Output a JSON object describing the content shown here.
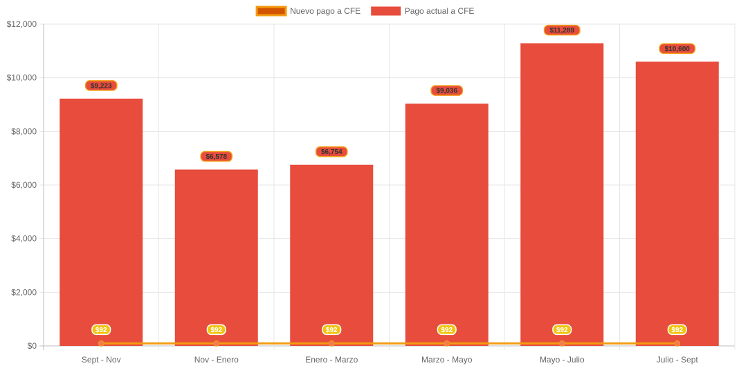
{
  "chart_data": {
    "type": "bar",
    "categories": [
      "Sept - Nov",
      "Nov - Enero",
      "Enero - Marzo",
      "Marzo - Mayo",
      "Mayo - Julio",
      "Julio - Sept"
    ],
    "series": [
      {
        "name": "Nuevo pago a CFE",
        "type": "line",
        "values": [
          92,
          92,
          92,
          92,
          92,
          92
        ],
        "labels": [
          "$92",
          "$92",
          "$92",
          "$92",
          "$92",
          "$92"
        ],
        "color": "#f39c12",
        "fill_color": "#d35400"
      },
      {
        "name": "Pago actual a CFE",
        "type": "bar",
        "values": [
          9223,
          6578,
          6754,
          9036,
          11289,
          10600
        ],
        "labels": [
          "$9,223",
          "$6,578",
          "$6,754",
          "$9,036",
          "$11,289",
          "$10,600"
        ],
        "color": "#e74c3c"
      }
    ],
    "yticks": [
      0,
      2000,
      4000,
      6000,
      8000,
      10000,
      12000
    ],
    "ytick_labels": [
      "$0",
      "$2,000",
      "$4,000",
      "$6,000",
      "$8,000",
      "$10,000",
      "$12,000"
    ],
    "ylim": [
      0,
      12000
    ],
    "grid": true,
    "legend_position": "top-center"
  }
}
